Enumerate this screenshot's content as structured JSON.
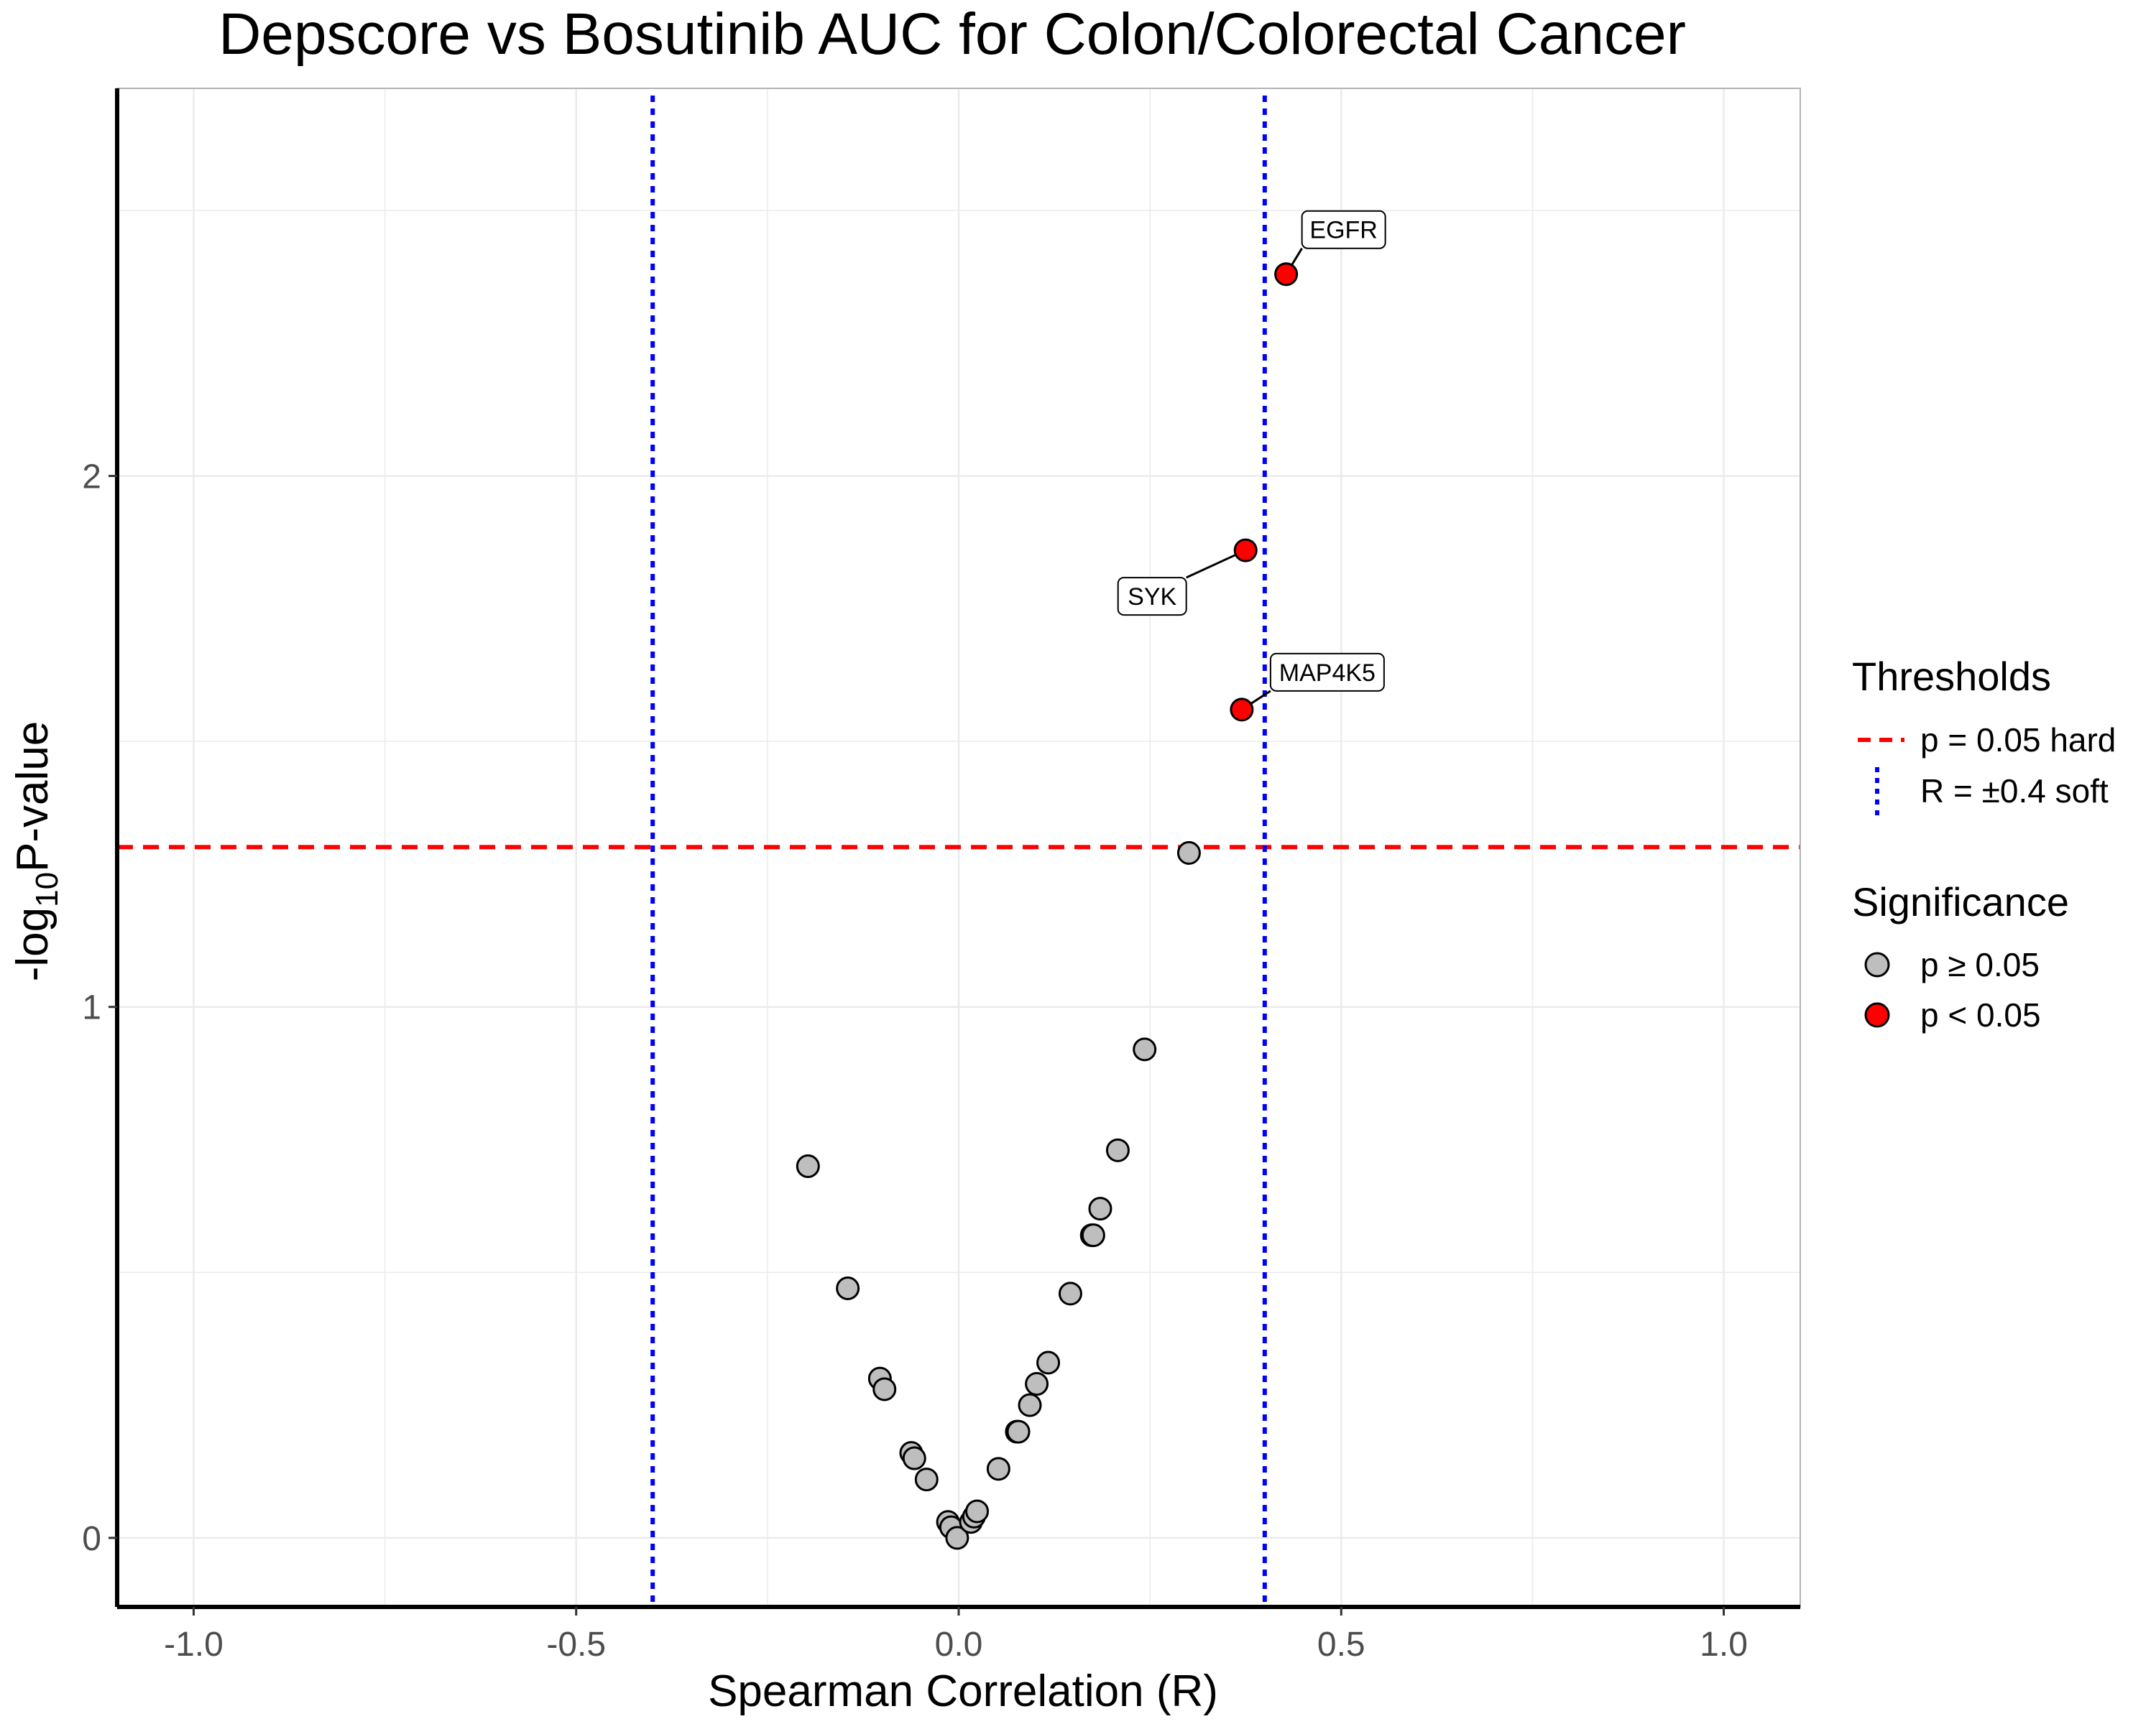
{
  "chart_data": {
    "type": "scatter",
    "title": "Depscore vs Bosutinib AUC for Colon/Colorectal Cancer",
    "xlabel": "Spearman Correlation (R)",
    "ylabel_prefix": "-log",
    "ylabel_subscript": "10",
    "ylabel_suffix": "P-value",
    "xlim": [
      -1.1,
      1.1
    ],
    "ylim": [
      -0.13,
      2.73
    ],
    "xticks": [
      -1.0,
      -0.5,
      0.0,
      0.5,
      1.0
    ],
    "xtick_labels": [
      "-1.0",
      "-0.5",
      "0.0",
      "0.5",
      "1.0"
    ],
    "yticks": [
      0,
      1,
      2
    ],
    "ytick_labels": [
      "0",
      "1",
      "2"
    ],
    "grid": true,
    "legend_position": "right",
    "thresholds": [
      {
        "type": "hline",
        "value": 1.301,
        "color": "#ff0000",
        "style": "dashed",
        "label": "p = 0.05 hard"
      },
      {
        "type": "vline",
        "value": -0.4,
        "color": "#0000ff",
        "style": "dotted",
        "label": "R = ±0.4 soft"
      },
      {
        "type": "vline",
        "value": 0.4,
        "color": "#0000ff",
        "style": "dotted",
        "label": "R = ±0.4 soft"
      }
    ],
    "legend": {
      "thresholds_title": "Thresholds",
      "threshold_items": [
        {
          "label": "p = 0.05 hard",
          "color": "#ff0000",
          "style": "dashed"
        },
        {
          "label": "R = ±0.4 soft",
          "color": "#0000ff",
          "style": "dotted"
        }
      ],
      "significance_title": "Significance",
      "significance_items": [
        {
          "label": "p ≥ 0.05",
          "color": "#bebebe"
        },
        {
          "label": "p < 0.05",
          "color": "#ff0000"
        }
      ]
    },
    "series": [
      {
        "name": "p ≥ 0.05",
        "color": "#bebebe",
        "points": [
          {
            "x": -0.197,
            "y": 0.7
          },
          {
            "x": -0.145,
            "y": 0.47
          },
          {
            "x": -0.103,
            "y": 0.3
          },
          {
            "x": -0.097,
            "y": 0.28
          },
          {
            "x": -0.062,
            "y": 0.16
          },
          {
            "x": -0.058,
            "y": 0.15
          },
          {
            "x": -0.042,
            "y": 0.11
          },
          {
            "x": -0.014,
            "y": 0.03
          },
          {
            "x": -0.01,
            "y": 0.02
          },
          {
            "x": -0.002,
            "y": 0.0
          },
          {
            "x": 0.016,
            "y": 0.03
          },
          {
            "x": 0.02,
            "y": 0.04
          },
          {
            "x": 0.024,
            "y": 0.05
          },
          {
            "x": 0.052,
            "y": 0.13
          },
          {
            "x": 0.076,
            "y": 0.2
          },
          {
            "x": 0.078,
            "y": 0.2
          },
          {
            "x": 0.093,
            "y": 0.25
          },
          {
            "x": 0.102,
            "y": 0.29
          },
          {
            "x": 0.117,
            "y": 0.33
          },
          {
            "x": 0.146,
            "y": 0.46
          },
          {
            "x": 0.174,
            "y": 0.57
          },
          {
            "x": 0.176,
            "y": 0.57
          },
          {
            "x": 0.185,
            "y": 0.62
          },
          {
            "x": 0.208,
            "y": 0.73
          },
          {
            "x": 0.243,
            "y": 0.92
          },
          {
            "x": 0.301,
            "y": 1.29
          }
        ]
      },
      {
        "name": "p < 0.05",
        "color": "#ff0000",
        "points": [
          {
            "x": 0.428,
            "y": 2.38,
            "label": "EGFR"
          },
          {
            "x": 0.375,
            "y": 1.86,
            "label": "SYK"
          },
          {
            "x": 0.37,
            "y": 1.56,
            "label": "MAP4K5"
          }
        ]
      }
    ]
  }
}
